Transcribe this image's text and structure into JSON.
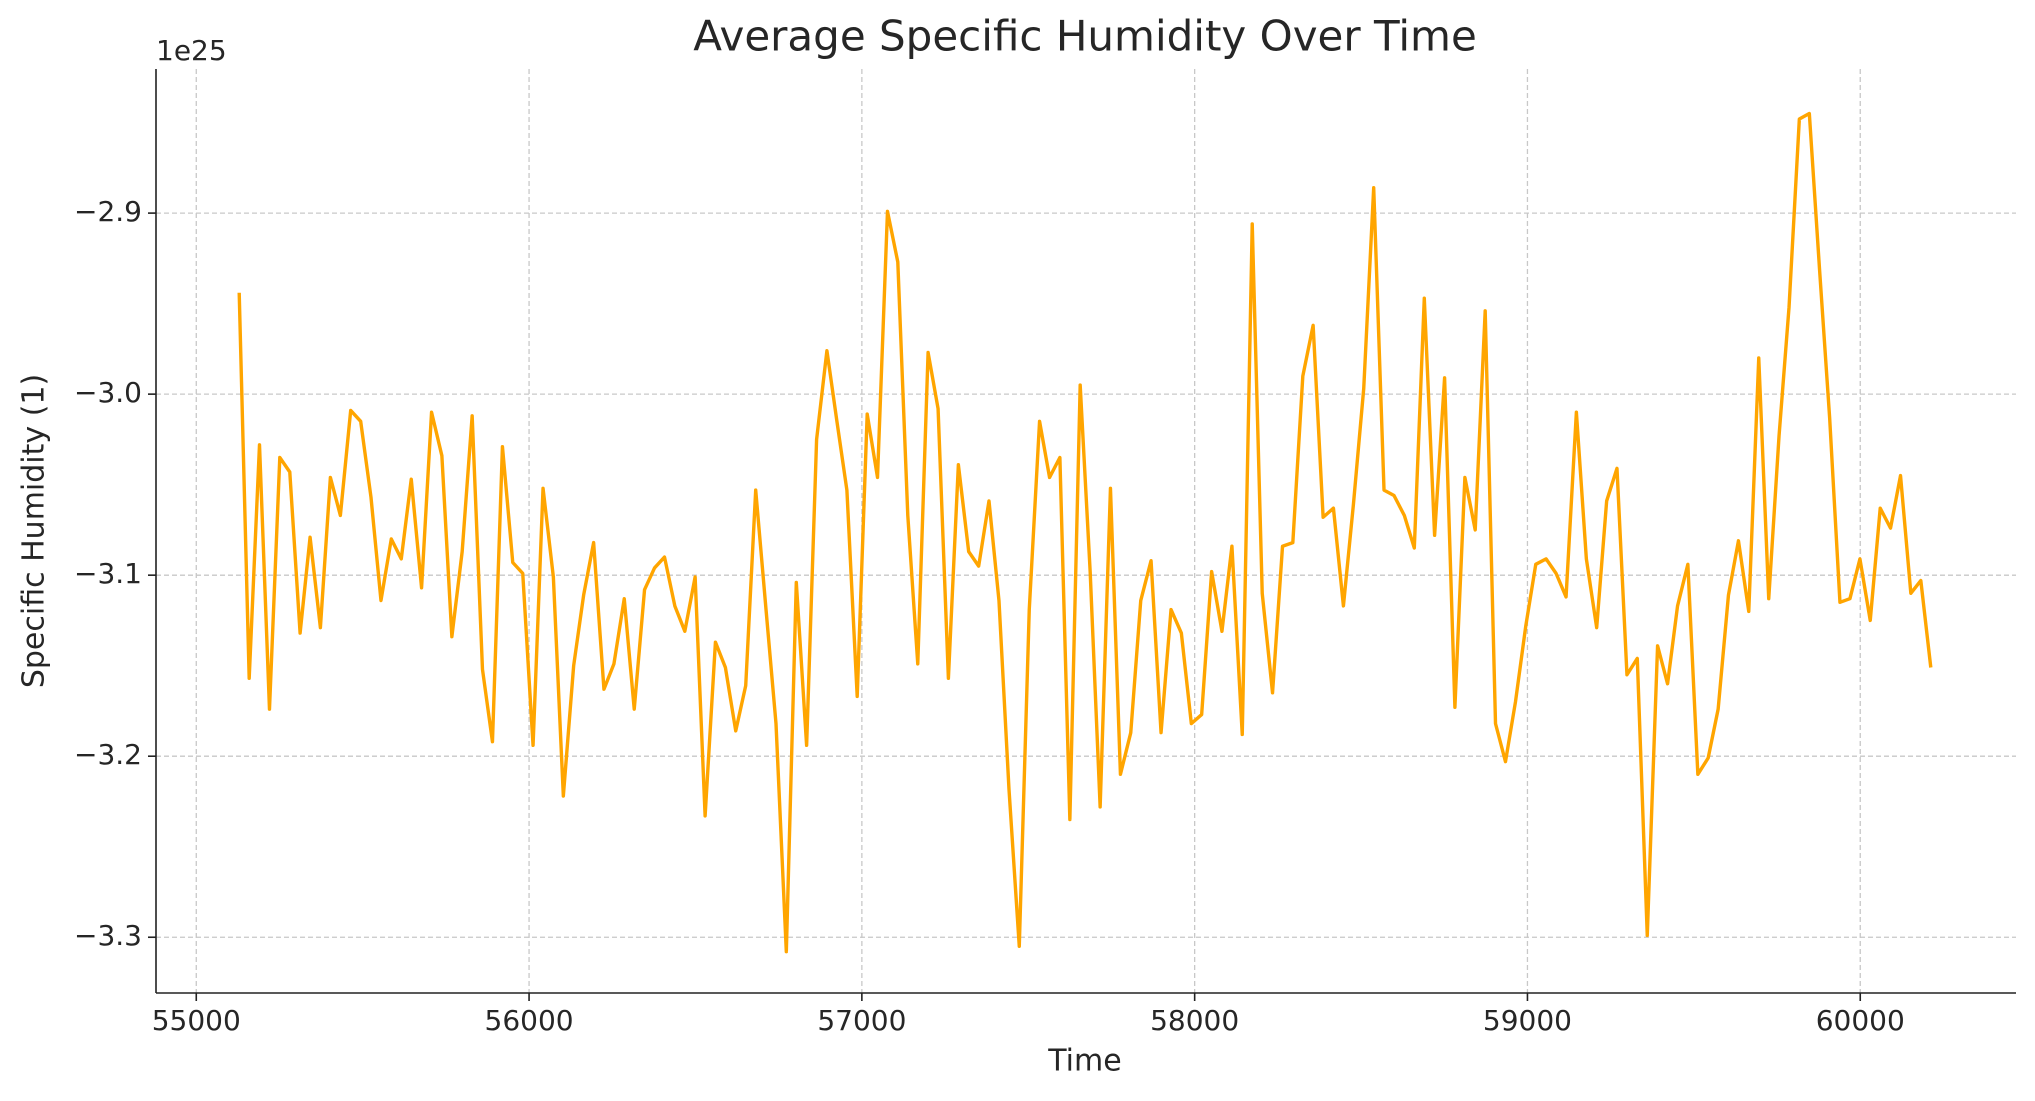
{
  "chart_data": {
    "type": "line",
    "title": "Average Specific Humidity Over Time",
    "x_label": "Time",
    "y_label": "Specific Humidity (1)",
    "y_offset_label": "1e25",
    "xlim": [
      54879,
      60468
    ],
    "ylim": [
      -3.3308,
      -2.8204
    ],
    "xticks": [
      55000,
      56000,
      57000,
      58000,
      59000,
      60000
    ],
    "yticks": [
      {
        "value": -3.3,
        "label": "−3.3"
      },
      {
        "value": -3.2,
        "label": "−3.2"
      },
      {
        "value": -3.1,
        "label": "−3.1"
      },
      {
        "value": -3.0,
        "label": "−3.0"
      },
      {
        "value": -2.9,
        "label": "−2.9"
      }
    ],
    "grid": true,
    "x": [
      55129,
      55159,
      55190,
      55220,
      55251,
      55281,
      55312,
      55342,
      55373,
      55403,
      55433,
      55464,
      55494,
      55525,
      55555,
      55586,
      55616,
      55646,
      55677,
      55707,
      55738,
      55768,
      55799,
      55829,
      55860,
      55890,
      55920,
      55951,
      55981,
      56012,
      56042,
      56073,
      56103,
      56134,
      56164,
      56194,
      56225,
      56255,
      56286,
      56316,
      56347,
      56377,
      56407,
      56438,
      56468,
      56499,
      56529,
      56560,
      56590,
      56621,
      56651,
      56681,
      56712,
      56742,
      56773,
      56803,
      56834,
      56864,
      56895,
      56925,
      56955,
      56986,
      57016,
      57047,
      57077,
      57108,
      57138,
      57168,
      57199,
      57229,
      57260,
      57290,
      57321,
      57351,
      57382,
      57412,
      57442,
      57473,
      57503,
      57534,
      57564,
      57595,
      57625,
      57656,
      57686,
      57716,
      57747,
      57777,
      57808,
      57838,
      57869,
      57899,
      57929,
      57960,
      57990,
      58021,
      58051,
      58082,
      58112,
      58143,
      58173,
      58203,
      58234,
      58264,
      58295,
      58325,
      58356,
      58386,
      58417,
      58447,
      58477,
      58508,
      58538,
      58569,
      58599,
      58630,
      58660,
      58690,
      58721,
      58751,
      58782,
      58812,
      58843,
      58873,
      58904,
      58934,
      58964,
      58995,
      59025,
      59056,
      59086,
      59116,
      59147,
      59177,
      59208,
      59238,
      59269,
      59299,
      59330,
      59360,
      59391,
      59421,
      59451,
      59482,
      59512,
      59543,
      59573,
      59604,
      59634,
      59665,
      59695,
      59725,
      59756,
      59786,
      59817,
      59847,
      59878,
      59908,
      59939,
      59969,
      59999,
      60030,
      60060,
      60091,
      60121,
      60152,
      60182,
      60212
    ],
    "series": [
      {
        "name": "Specific Humidity",
        "color": "#ffa500",
        "values": [
          -2.944,
          -3.157,
          -3.028,
          -3.174,
          -3.035,
          -3.043,
          -3.132,
          -3.079,
          -3.129,
          -3.046,
          -3.067,
          -3.009,
          -3.015,
          -3.057,
          -3.114,
          -3.08,
          -3.091,
          -3.047,
          -3.107,
          -3.01,
          -3.034,
          -3.134,
          -3.087,
          -3.012,
          -3.152,
          -3.192,
          -3.029,
          -3.093,
          -3.099,
          -3.194,
          -3.052,
          -3.101,
          -3.222,
          -3.15,
          -3.111,
          -3.082,
          -3.163,
          -3.149,
          -3.113,
          -3.174,
          -3.108,
          -3.096,
          -3.09,
          -3.117,
          -3.131,
          -3.101,
          -3.233,
          -3.137,
          -3.151,
          -3.186,
          -3.161,
          -3.053,
          -3.119,
          -3.182,
          -3.308,
          -3.104,
          -3.194,
          -3.025,
          -2.976,
          -3.015,
          -3.053,
          -3.167,
          -3.011,
          -3.046,
          -2.899,
          -2.927,
          -3.067,
          -3.149,
          -2.977,
          -3.008,
          -3.157,
          -3.039,
          -3.087,
          -3.095,
          -3.059,
          -3.114,
          -3.218,
          -3.305,
          -3.119,
          -3.015,
          -3.046,
          -3.035,
          -3.235,
          -2.995,
          -3.098,
          -3.228,
          -3.052,
          -3.21,
          -3.187,
          -3.114,
          -3.092,
          -3.187,
          -3.119,
          -3.132,
          -3.182,
          -3.177,
          -3.098,
          -3.131,
          -3.084,
          -3.188,
          -2.906,
          -3.11,
          -3.165,
          -3.084,
          -3.082,
          -2.99,
          -2.962,
          -3.068,
          -3.063,
          -3.117,
          -3.061,
          -2.997,
          -2.886,
          -3.053,
          -3.056,
          -3.067,
          -3.085,
          -2.947,
          -3.078,
          -2.991,
          -3.173,
          -3.046,
          -3.075,
          -2.954,
          -3.182,
          -3.203,
          -3.17,
          -3.128,
          -3.094,
          -3.091,
          -3.099,
          -3.112,
          -3.01,
          -3.091,
          -3.129,
          -3.059,
          -3.041,
          -3.155,
          -3.146,
          -3.299,
          -3.139,
          -3.16,
          -3.117,
          -3.094,
          -3.21,
          -3.201,
          -3.174,
          -3.111,
          -3.081,
          -3.12,
          -2.98,
          -3.113,
          -3.023,
          -2.952,
          -2.848,
          -2.845,
          -2.932,
          -3.013,
          -3.115,
          -3.113,
          -3.091,
          -3.125,
          -3.063,
          -3.074,
          -3.045,
          -3.11,
          -3.103,
          -3.151
        ]
      }
    ]
  }
}
